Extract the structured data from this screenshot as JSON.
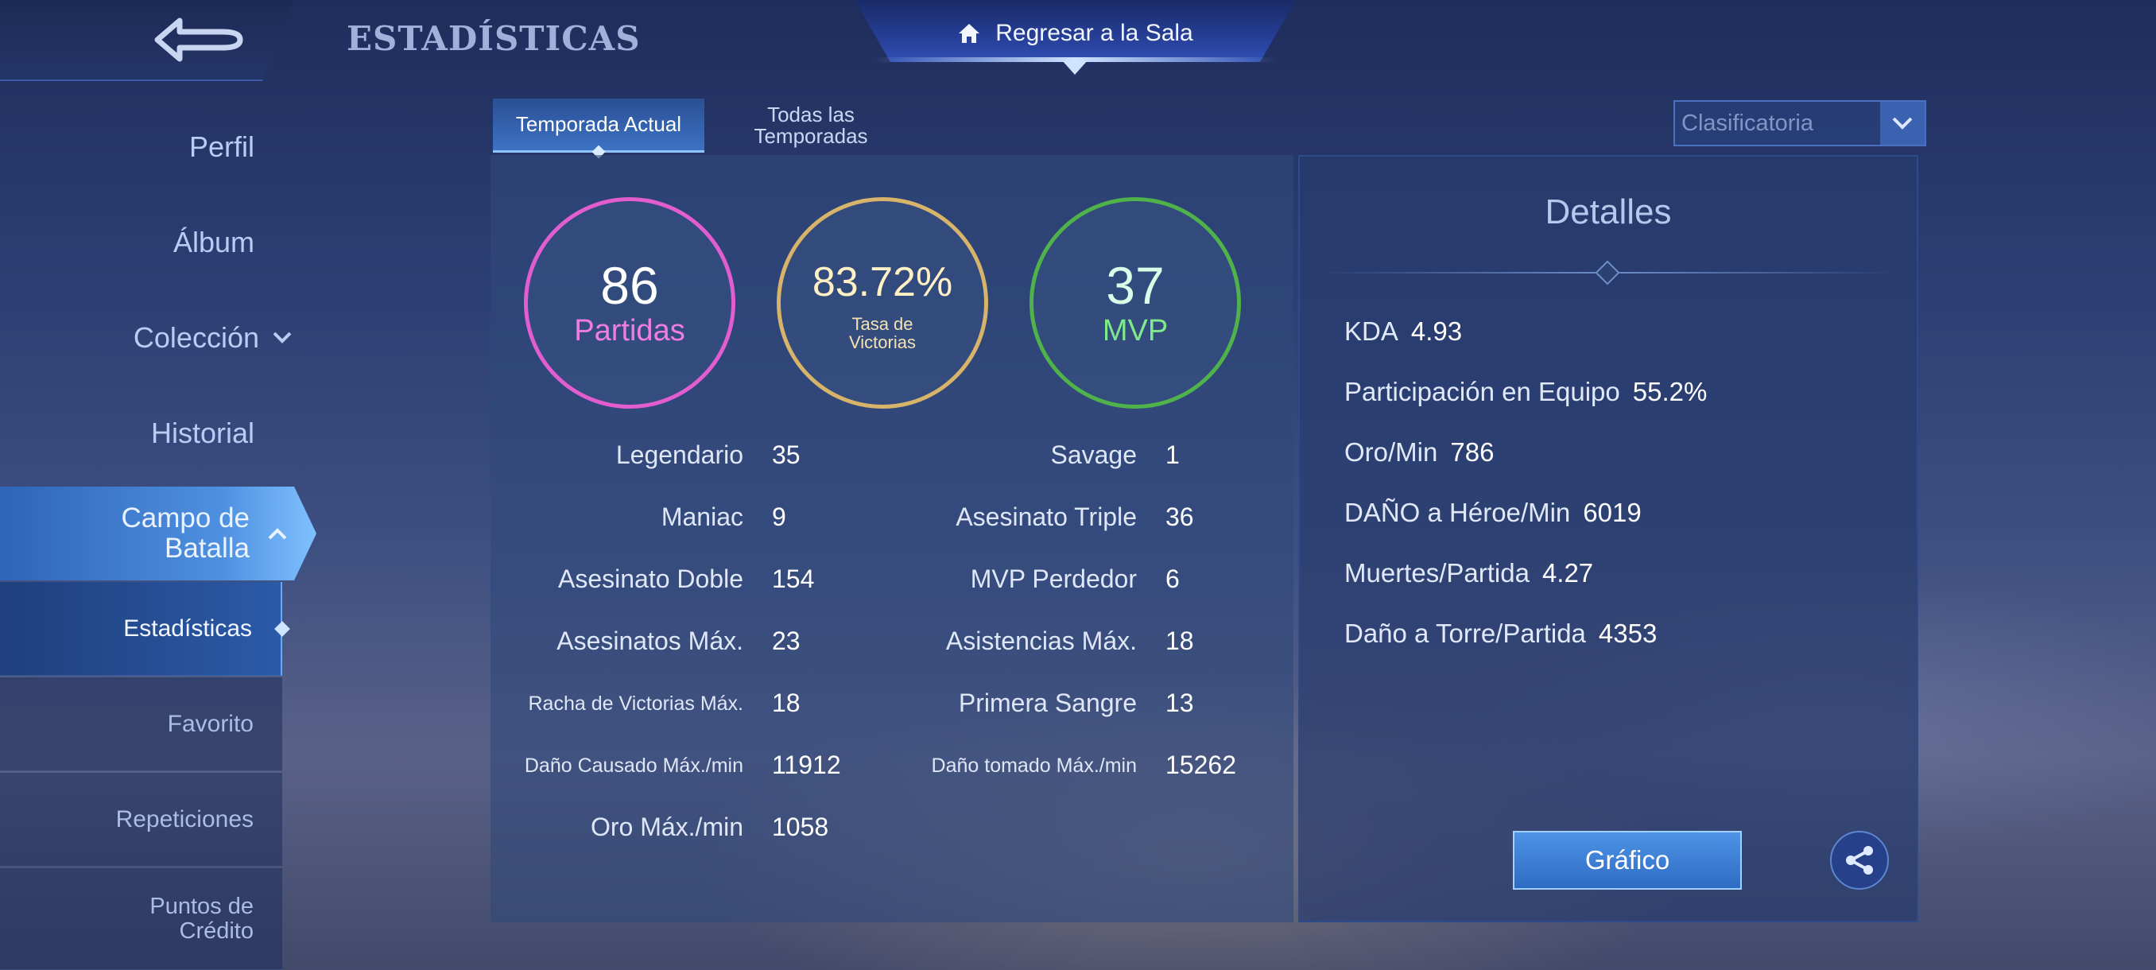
{
  "header": {
    "title": "ESTADÍSTICAS",
    "home_button_label": "Regresar a la Sala",
    "back_icon": "back-arrow-icon",
    "home_icon": "home-icon"
  },
  "sidebar": {
    "items": [
      {
        "label": "Perfil"
      },
      {
        "label": "Álbum"
      },
      {
        "label": "Colección"
      },
      {
        "label": "Historial"
      },
      {
        "label": "Campo de Batalla"
      }
    ],
    "subitems": [
      {
        "label": "Estadísticas",
        "active": true
      },
      {
        "label": "Favorito"
      },
      {
        "label": "Repeticiones"
      },
      {
        "label": "Puntos de Crédito"
      }
    ]
  },
  "tabs": [
    {
      "label": "Temporada Actual",
      "active": true
    },
    {
      "label": "Todas las Temporadas"
    }
  ],
  "mode_select": {
    "value": "Clasificatoria"
  },
  "rings": [
    {
      "value": "86",
      "label": "Partidas",
      "color": "#e25ed0"
    },
    {
      "value": "83.72%",
      "label": "Tasa de Victorias",
      "color": "#d7b46a"
    },
    {
      "value": "37",
      "label": "MVP",
      "color": "#4fb24a"
    }
  ],
  "stats_left": [
    {
      "label": "Legendario",
      "value": "35"
    },
    {
      "label": "Maniac",
      "value": "9"
    },
    {
      "label": "Asesinato Doble",
      "value": "154"
    },
    {
      "label": "Asesinatos Máx.",
      "value": "23"
    },
    {
      "label": "Racha de Victorias Máx.",
      "value": "18"
    },
    {
      "label": "Daño Causado Máx./min",
      "value": "11912"
    },
    {
      "label": "Oro Máx./min",
      "value": "1058"
    }
  ],
  "stats_right": [
    {
      "label": "Savage",
      "value": "1"
    },
    {
      "label": "Asesinato Triple",
      "value": "36"
    },
    {
      "label": "MVP Perdedor",
      "value": "6"
    },
    {
      "label": "Asistencias Máx.",
      "value": "18"
    },
    {
      "label": "Primera Sangre",
      "value": "13"
    },
    {
      "label": "Daño tomado Máx./min",
      "value": "15262"
    }
  ],
  "details": {
    "title": "Detalles",
    "rows": [
      {
        "label": "KDA",
        "value": "4.93"
      },
      {
        "label": "Participación en Equipo",
        "value": "55.2%"
      },
      {
        "label": "Oro/Min",
        "value": "786"
      },
      {
        "label": "DAÑO a Héroe/Min",
        "value": "6019"
      },
      {
        "label": "Muertes/Partida",
        "value": "4.27"
      },
      {
        "label": "Daño a Torre/Partida",
        "value": "4353"
      }
    ],
    "graph_button": "Gráfico",
    "share_icon": "share-icon"
  }
}
